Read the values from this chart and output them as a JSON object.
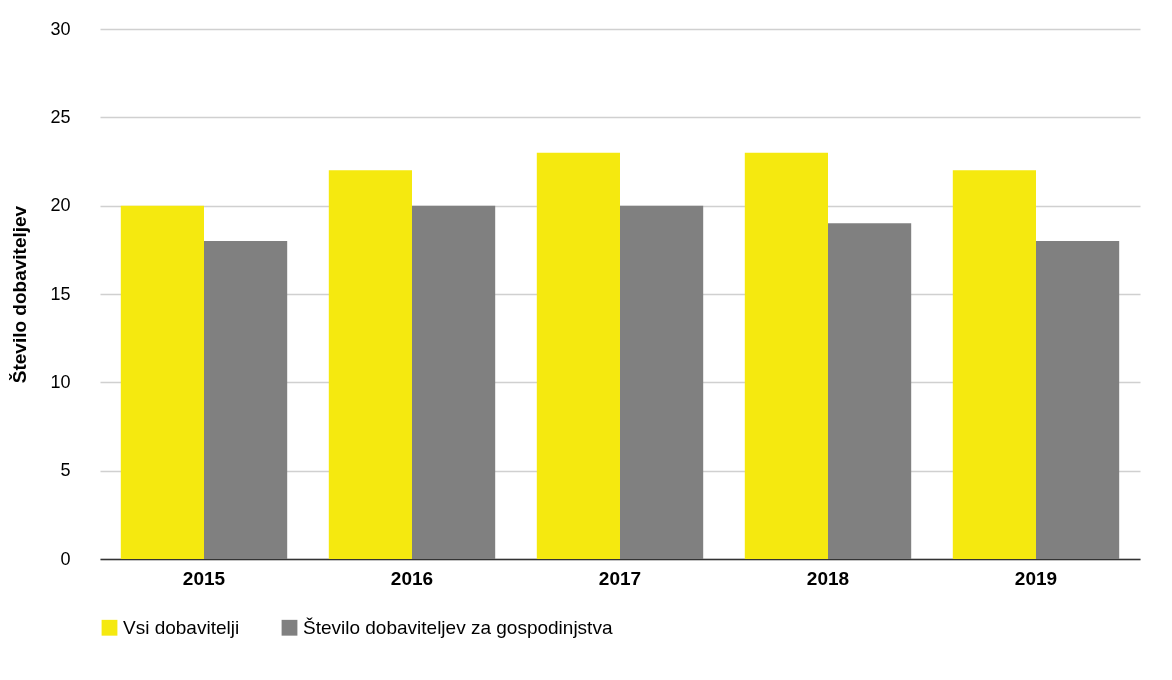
{
  "chart_data": {
    "type": "bar",
    "ylabel": "Število dobaviteljev",
    "categories": [
      "2015",
      "2016",
      "2017",
      "2018",
      "2019"
    ],
    "series": [
      {
        "name": "Vsi dobavitelji",
        "color": "#f5e90f",
        "values": [
          20,
          22,
          23,
          23,
          22
        ]
      },
      {
        "name": "Število dobaviteljev za gospodinjstva",
        "color": "#808080",
        "values": [
          18,
          20,
          20,
          19,
          18
        ]
      }
    ],
    "ylim": [
      0,
      30
    ],
    "yticks": [
      0,
      5,
      10,
      15,
      20,
      25,
      30
    ],
    "grid": "y",
    "legend": "bottom"
  }
}
